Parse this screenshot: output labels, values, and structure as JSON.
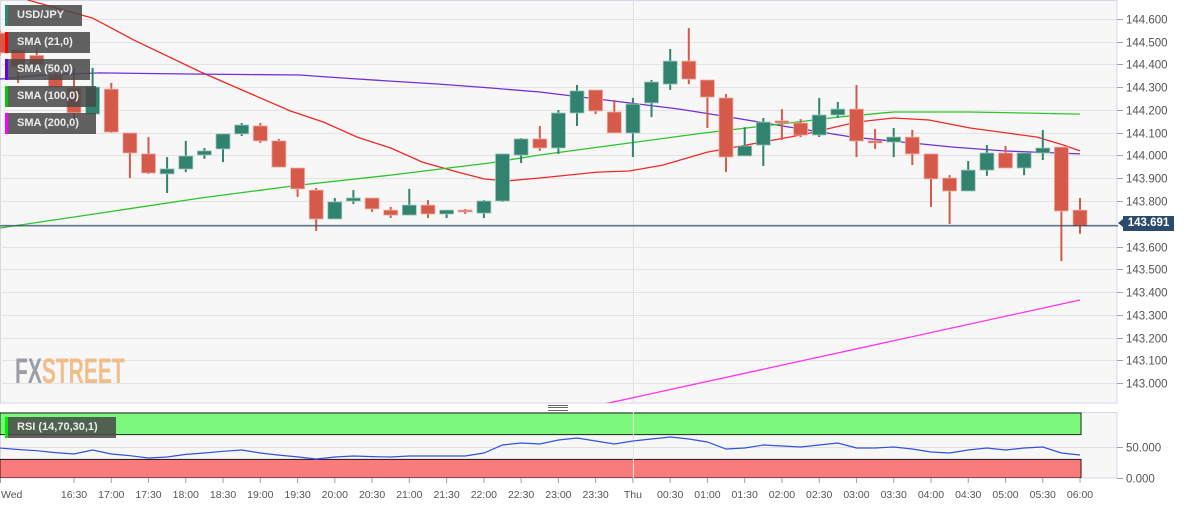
{
  "legend": {
    "instrument": {
      "label": "USD/JPY",
      "color": "#2c8a72"
    },
    "indicators": [
      {
        "label": "SMA (21,0)",
        "color": "#ff0000"
      },
      {
        "label": "SMA (50,0)",
        "color": "#6a00e8"
      },
      {
        "label": "SMA (100,0)",
        "color": "#00cc00"
      },
      {
        "label": "SMA (200,0)",
        "color": "#ff00ff"
      }
    ],
    "rsi": {
      "label": "RSI (14,70,30,1)",
      "color": "#00ee00"
    }
  },
  "watermark": {
    "fx": "FX",
    "street": "STREET"
  },
  "price_axis": {
    "labels": [
      "144.600",
      "144.500",
      "144.400",
      "144.300",
      "144.200",
      "144.100",
      "144.000",
      "143.900",
      "143.800",
      "143.600",
      "143.500",
      "143.400",
      "143.300",
      "143.200",
      "143.100",
      "143.000"
    ],
    "gridlines": [
      144.6,
      144.5,
      144.4,
      144.3,
      144.2,
      144.1,
      144.0,
      143.9,
      143.8,
      143.7,
      143.6,
      143.5,
      143.4,
      143.3,
      143.2,
      143.1,
      143.0
    ],
    "current_price": "143.691"
  },
  "rsi_axis": {
    "labels": [
      "50.000",
      "0.000"
    ]
  },
  "time_axis": {
    "labels": [
      "Wed",
      "16:30",
      "17:00",
      "17:30",
      "18:00",
      "18:30",
      "19:00",
      "19:30",
      "20:00",
      "20:30",
      "21:00",
      "21:30",
      "22:00",
      "22:30",
      "23:00",
      "23:30",
      "Thu",
      "00:30",
      "01:00",
      "01:30",
      "02:00",
      "02:30",
      "03:00",
      "03:30",
      "04:00",
      "04:30",
      "05:00",
      "05:30",
      "06:00"
    ]
  },
  "colors": {
    "bull": "#31826f",
    "bear": "#d65a49",
    "sma21": "#f02828",
    "sma50": "#7030d8",
    "sma100": "#2ec42e",
    "sma200": "#ff30ec",
    "rsi_line": "#3352e0",
    "rsi_overbought": "#7cf87c",
    "rsi_oversold": "#f97b7b",
    "current_price": "#2c4a6c"
  },
  "chart_data": {
    "type": "candlestick",
    "title": "USD/JPY",
    "interval": "15 min",
    "xlabel": "",
    "ylabel": "",
    "ylim": [
      142.9,
      144.68
    ],
    "grid": true,
    "legend_position": "top-left",
    "candle_columns": [
      "time",
      "open",
      "high",
      "low",
      "close"
    ],
    "candles": [
      [
        "15:30",
        144.538,
        144.55,
        144.44,
        144.451
      ],
      [
        "15:45",
        144.464,
        144.47,
        144.319,
        144.389
      ],
      [
        "16:00",
        144.44,
        144.47,
        144.389,
        144.4
      ],
      [
        "16:15",
        144.354,
        144.363,
        144.297,
        144.301
      ],
      [
        "16:30",
        144.297,
        144.385,
        144.143,
        144.187
      ],
      [
        "16:45",
        144.182,
        144.385,
        144.178,
        144.301
      ],
      [
        "17:00",
        144.292,
        144.319,
        144.099,
        144.103
      ],
      [
        "17:15",
        144.099,
        144.1,
        143.901,
        144.011
      ],
      [
        "17:30",
        144.007,
        144.081,
        143.919,
        143.923
      ],
      [
        "17:45",
        143.919,
        143.993,
        143.835,
        143.941
      ],
      [
        "18:00",
        143.941,
        144.064,
        143.927,
        143.998
      ],
      [
        "18:15",
        144.002,
        144.033,
        143.985,
        144.02
      ],
      [
        "18:30",
        144.029,
        144.095,
        143.971,
        144.095
      ],
      [
        "18:45",
        144.095,
        144.143,
        144.086,
        144.134
      ],
      [
        "19:00",
        144.13,
        144.143,
        144.055,
        144.064
      ],
      [
        "19:15",
        144.064,
        144.073,
        143.949,
        143.949
      ],
      [
        "19:30",
        143.945,
        143.945,
        143.818,
        143.853
      ],
      [
        "19:45",
        143.848,
        143.857,
        143.668,
        143.721
      ],
      [
        "20:00",
        143.721,
        143.813,
        143.721,
        143.796
      ],
      [
        "20:15",
        143.8,
        143.848,
        143.787,
        143.813
      ],
      [
        "20:30",
        143.813,
        143.813,
        143.752,
        143.765
      ],
      [
        "20:45",
        143.76,
        143.774,
        143.725,
        143.738
      ],
      [
        "21:00",
        143.738,
        143.853,
        143.738,
        143.782
      ],
      [
        "21:15",
        143.782,
        143.804,
        143.725,
        143.743
      ],
      [
        "21:30",
        143.743,
        143.76,
        143.725,
        143.76
      ],
      [
        "21:45",
        143.76,
        143.765,
        143.743,
        143.752
      ],
      [
        "22:00",
        143.747,
        143.804,
        143.725,
        143.8
      ],
      [
        "22:15",
        143.8,
        144.007,
        143.796,
        144.007
      ],
      [
        "22:30",
        144.002,
        144.077,
        143.967,
        144.073
      ],
      [
        "22:45",
        144.073,
        144.13,
        144.02,
        144.033
      ],
      [
        "23:00",
        144.033,
        144.2,
        144.007,
        144.187
      ],
      [
        "23:15",
        144.187,
        144.31,
        144.13,
        144.284
      ],
      [
        "23:30",
        144.288,
        144.288,
        144.182,
        144.196
      ],
      [
        "23:45",
        144.191,
        144.244,
        144.099,
        144.099
      ],
      [
        "00:00",
        144.099,
        144.253,
        143.993,
        144.226
      ],
      [
        "00:15",
        144.231,
        144.332,
        144.169,
        144.323
      ],
      [
        "00:30",
        144.314,
        144.468,
        144.288,
        144.415
      ],
      [
        "00:45",
        144.415,
        144.56,
        144.314,
        144.336
      ],
      [
        "01:00",
        144.332,
        144.332,
        144.121,
        144.257
      ],
      [
        "01:15",
        144.253,
        144.27,
        143.927,
        143.993
      ],
      [
        "01:30",
        143.998,
        144.125,
        143.998,
        144.042
      ],
      [
        "01:45",
        144.046,
        144.165,
        143.954,
        144.147
      ],
      [
        "02:00",
        144.152,
        144.204,
        144.068,
        144.143
      ],
      [
        "02:15",
        144.143,
        144.16,
        144.081,
        144.09
      ],
      [
        "02:30",
        144.09,
        144.253,
        144.081,
        144.178
      ],
      [
        "02:45",
        144.178,
        144.235,
        144.165,
        144.204
      ],
      [
        "03:00",
        144.204,
        144.31,
        143.993,
        144.064
      ],
      [
        "03:15",
        144.064,
        144.116,
        144.029,
        144.055
      ],
      [
        "03:30",
        144.059,
        144.121,
        143.993,
        144.081
      ],
      [
        "03:45",
        144.081,
        144.112,
        143.958,
        144.007
      ],
      [
        "04:00",
        144.007,
        144.007,
        143.774,
        143.897
      ],
      [
        "04:15",
        143.901,
        143.914,
        143.699,
        143.844
      ],
      [
        "04:30",
        143.844,
        143.976,
        143.844,
        143.936
      ],
      [
        "04:45",
        143.936,
        144.046,
        143.91,
        144.011
      ],
      [
        "05:00",
        144.011,
        144.042,
        143.945,
        143.945
      ],
      [
        "05:15",
        143.945,
        144.011,
        143.914,
        144.011
      ],
      [
        "05:30",
        144.011,
        144.112,
        143.98,
        144.033
      ],
      [
        "05:45",
        144.037,
        144.037,
        143.536,
        143.756
      ],
      [
        "06:00",
        143.76,
        143.813,
        143.655,
        143.691
      ]
    ],
    "series_note": "SMA points are [bar_offset_from_16:30, value]",
    "series": [
      {
        "name": "SMA (21,0)",
        "points": [
          [
            -2.5,
            144.684
          ],
          [
            1.0,
            144.604
          ],
          [
            3.2,
            144.508
          ],
          [
            6.8,
            144.367
          ],
          [
            11.6,
            144.196
          ],
          [
            13.4,
            144.147
          ],
          [
            15.2,
            144.081
          ],
          [
            17.0,
            144.033
          ],
          [
            18.7,
            143.971
          ],
          [
            20.6,
            143.927
          ],
          [
            22.0,
            143.897
          ],
          [
            23.2,
            143.888
          ],
          [
            25.0,
            143.901
          ],
          [
            28.1,
            143.927
          ],
          [
            29.8,
            143.932
          ],
          [
            31.6,
            143.958
          ],
          [
            34.0,
            144.015
          ],
          [
            36.1,
            144.046
          ],
          [
            38.4,
            144.081
          ],
          [
            39.5,
            144.099
          ],
          [
            42.0,
            144.147
          ],
          [
            44.0,
            144.165
          ],
          [
            45.9,
            144.156
          ],
          [
            48.1,
            144.121
          ],
          [
            51.7,
            144.081
          ],
          [
            53.1,
            144.046
          ],
          [
            54.0,
            144.02
          ]
        ]
      },
      {
        "name": "SMA (50,0)",
        "points": [
          [
            -4,
            144.336
          ],
          [
            -1.7,
            144.354
          ],
          [
            1.4,
            144.363
          ],
          [
            6.8,
            144.358
          ],
          [
            12.1,
            144.354
          ],
          [
            14.3,
            144.341
          ],
          [
            17.0,
            144.327
          ],
          [
            19.6,
            144.314
          ],
          [
            22.3,
            144.297
          ],
          [
            25.0,
            144.279
          ],
          [
            27.2,
            144.257
          ],
          [
            29.8,
            144.231
          ],
          [
            32.5,
            144.204
          ],
          [
            35.2,
            144.169
          ],
          [
            38.4,
            144.125
          ],
          [
            41.8,
            144.081
          ],
          [
            44.5,
            144.059
          ],
          [
            47.2,
            144.037
          ],
          [
            49.9,
            144.02
          ],
          [
            54.0,
            144.007
          ]
        ]
      },
      {
        "name": "SMA (100,0)",
        "points": [
          [
            -4,
            143.681
          ],
          [
            1.4,
            143.747
          ],
          [
            6.8,
            143.813
          ],
          [
            12.1,
            143.87
          ],
          [
            17.0,
            143.914
          ],
          [
            22.3,
            143.967
          ],
          [
            25.0,
            144.002
          ],
          [
            29.8,
            144.055
          ],
          [
            33.8,
            144.099
          ],
          [
            38.4,
            144.143
          ],
          [
            41.0,
            144.169
          ],
          [
            44.0,
            144.191
          ],
          [
            48.1,
            144.191
          ],
          [
            54.0,
            144.182
          ]
        ]
      },
      {
        "name": "SMA (200,0)",
        "points": [
          [
            20,
            142.756
          ],
          [
            28.7,
            142.912
          ],
          [
            54.0,
            143.365
          ]
        ]
      }
    ],
    "current_price": 143.691,
    "rsi": {
      "name": "RSI (14,70,30,1)",
      "overbought": 70,
      "oversold": 30,
      "ylim": [
        0,
        100
      ],
      "values": [
        48.4,
        46.0,
        44.0,
        41.0,
        38.7,
        45.2,
        38.7,
        36.0,
        32.3,
        33.9,
        38.0,
        40.3,
        43.0,
        45.2,
        40.3,
        37.0,
        34.0,
        30.6,
        33.9,
        35.5,
        34.5,
        33.9,
        35.5,
        35.5,
        35.5,
        35.5,
        40.3,
        53.2,
        56.5,
        54.8,
        61.3,
        64.5,
        59.7,
        54.8,
        59.7,
        62.9,
        66.1,
        62.9,
        58.1,
        46.8,
        48.4,
        53.2,
        51.6,
        50.0,
        53.2,
        56.5,
        48.4,
        48.4,
        50.0,
        46.8,
        41.9,
        40.3,
        45.2,
        48.4,
        45.2,
        48.4,
        50.0,
        40.3,
        37.1
      ]
    }
  }
}
